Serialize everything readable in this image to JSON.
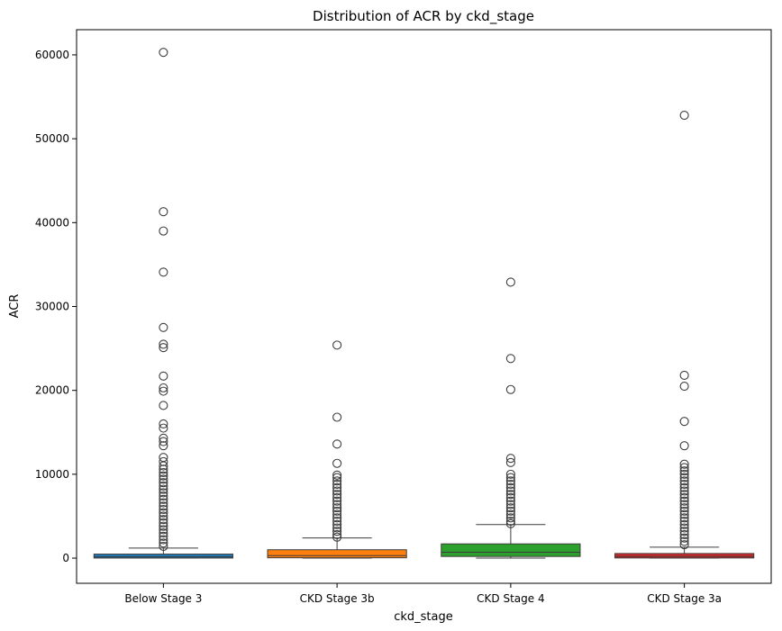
{
  "chart_data": {
    "type": "box",
    "title": "Distribution of ACR by ckd_stage",
    "xlabel": "ckd_stage",
    "ylabel": "ACR",
    "ylim": [
      -3000,
      63000
    ],
    "yticks": [
      0,
      10000,
      20000,
      30000,
      40000,
      50000,
      60000
    ],
    "ytick_labels": [
      "0",
      "10000",
      "20000",
      "30000",
      "40000",
      "50000",
      "60000"
    ],
    "grid": false,
    "categories": [
      "Below Stage 3",
      "CKD Stage 3b",
      "CKD Stage 4",
      "CKD Stage 3a"
    ],
    "boxes": [
      {
        "category": "Below Stage 3",
        "color": "#1f77b4",
        "whisker_low": 0,
        "q1": 10,
        "median": 150,
        "q3": 480,
        "whisker_high": 1200,
        "outliers": [
          60300,
          41300,
          39000,
          34100,
          27500,
          25500,
          25100,
          21700,
          20300,
          19900,
          18200,
          16000,
          15500,
          14300,
          13900,
          13400,
          12000,
          11500,
          11000,
          10600,
          10200,
          9800,
          9400,
          9000,
          8600,
          8200,
          7800,
          7400,
          7000,
          6600,
          6200,
          5800,
          5400,
          5000,
          4600,
          4200,
          3800,
          3400,
          3000,
          2600,
          2200,
          1800,
          1400
        ]
      },
      {
        "category": "CKD Stage 3b",
        "color": "#ff7f0e",
        "whisker_low": 0,
        "q1": 40,
        "median": 300,
        "q3": 1000,
        "whisker_high": 2400,
        "outliers": [
          25400,
          16800,
          13600,
          11300,
          9900,
          9600,
          9200,
          8800,
          8400,
          8000,
          7600,
          7200,
          6800,
          6400,
          6000,
          5600,
          5200,
          4800,
          4400,
          4000,
          3600,
          3200,
          2800,
          2500
        ]
      },
      {
        "category": "CKD Stage 4",
        "color": "#2ca02c",
        "whisker_low": 0,
        "q1": 200,
        "median": 700,
        "q3": 1700,
        "whisker_high": 4000,
        "outliers": [
          32900,
          23800,
          20100,
          11900,
          11400,
          10000,
          9600,
          9200,
          8800,
          8400,
          8000,
          7600,
          7200,
          6800,
          6400,
          6000,
          5600,
          5200,
          4800,
          4400,
          4100
        ]
      },
      {
        "category": "CKD Stage 3a",
        "color": "#d62728",
        "whisker_low": 0,
        "q1": 20,
        "median": 200,
        "q3": 550,
        "whisker_high": 1300,
        "outliers": [
          52800,
          21800,
          20500,
          16300,
          13400,
          11200,
          10800,
          10400,
          10000,
          9600,
          9200,
          8800,
          8400,
          8000,
          7600,
          7200,
          6800,
          6400,
          6000,
          5600,
          5200,
          4800,
          4400,
          4000,
          3600,
          3200,
          2800,
          2400,
          2000,
          1600
        ]
      }
    ]
  }
}
